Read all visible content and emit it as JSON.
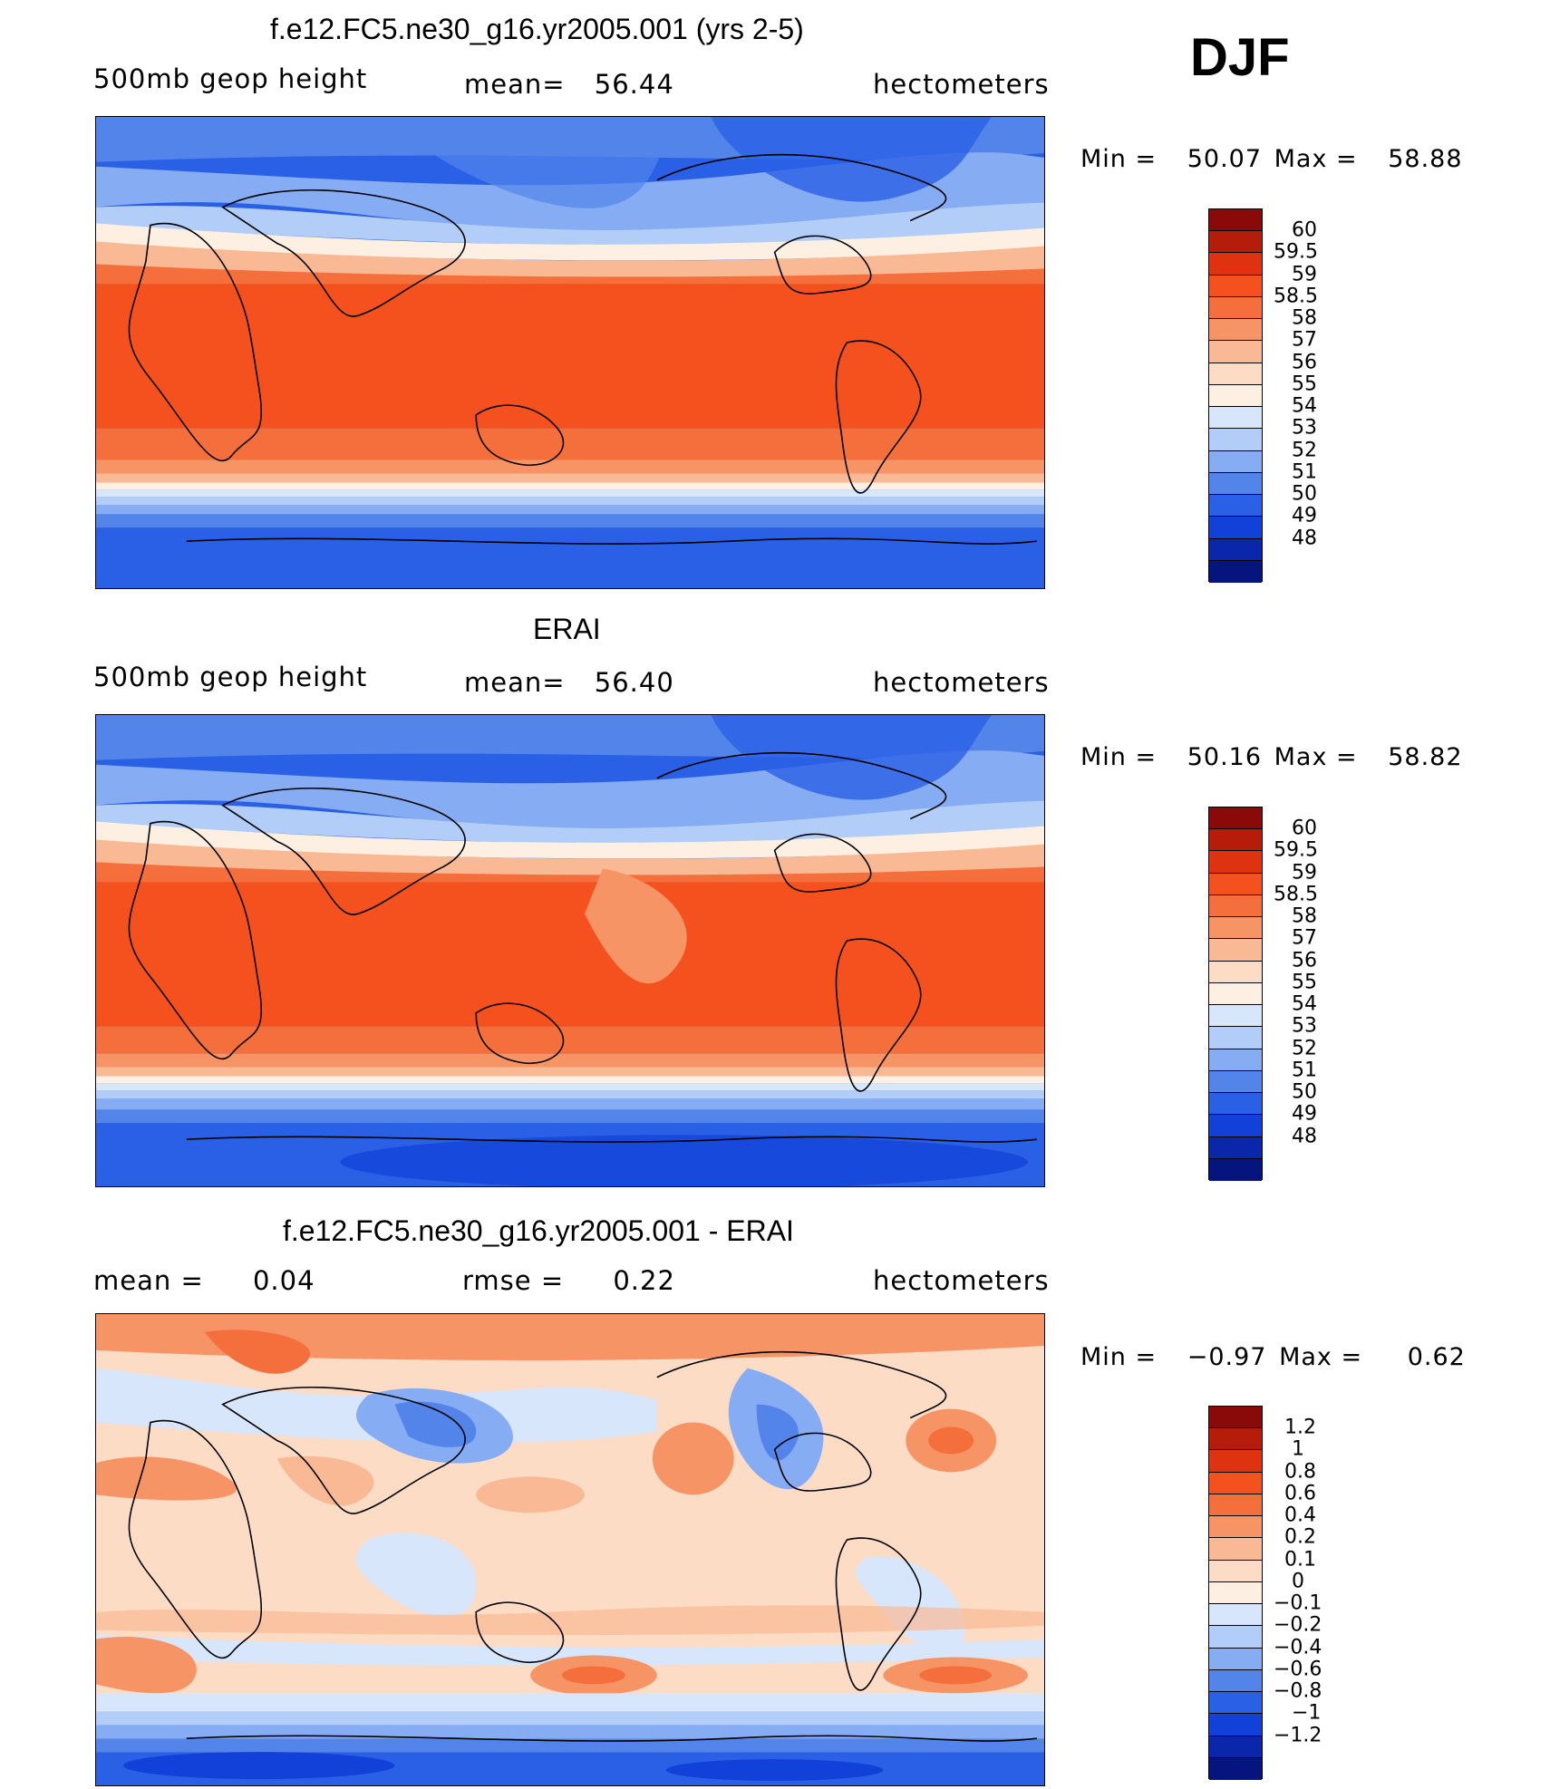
{
  "season": "DJF",
  "panels": [
    {
      "title": "f.e12.FC5.ne30_g16.yr2005.001 (yrs 2-5)",
      "left_label": "500mb geop height",
      "mean_label": "mean=",
      "mean_value": "56.44",
      "units": "hectometers",
      "min_label": "Min =",
      "min_value": "50.07",
      "max_label": "Max =",
      "max_value": "58.88",
      "type": "field"
    },
    {
      "title": "ERAI",
      "left_label": "500mb geop height",
      "mean_label": "mean=",
      "mean_value": "56.40",
      "units": "hectometers",
      "min_label": "Min =",
      "min_value": "50.16",
      "max_label": "Max =",
      "max_value": "58.82",
      "type": "field"
    },
    {
      "title": "f.e12.FC5.ne30_g16.yr2005.001 - ERAI",
      "left_label": "mean =",
      "left_value": "0.04",
      "mean_label": "rmse =",
      "mean_value": "0.22",
      "units": "hectometers",
      "min_label": "Min =",
      "min_value": "−0.97",
      "max_label": "Max =",
      "max_value": "0.62",
      "type": "difference"
    }
  ],
  "field_colorbar": {
    "levels": [
      "60",
      "59.5",
      "59",
      "58.5",
      "58",
      "57",
      "56",
      "55",
      "54",
      "53",
      "52",
      "51",
      "50",
      "49",
      "48"
    ],
    "colors": [
      "#8a0a0a",
      "#b51d0a",
      "#de3210",
      "#f4511e",
      "#f56f3d",
      "#f79466",
      "#f9b995",
      "#fcdcc4",
      "#fdf0e3",
      "#d7e6fb",
      "#b1cdf8",
      "#86acf3",
      "#5284ea",
      "#2a60e6",
      "#1141d8",
      "#0a26aa",
      "#061480"
    ]
  },
  "diff_colorbar": {
    "levels": [
      "1.2",
      "1",
      "0.8",
      "0.6",
      "0.4",
      "0.2",
      "0.1",
      "0",
      "−0.1",
      "−0.2",
      "−0.4",
      "−0.6",
      "−0.8",
      "−1",
      "−1.2"
    ],
    "colors": [
      "#8a0a0a",
      "#b51d0a",
      "#de3210",
      "#f4511e",
      "#f56f3d",
      "#f79466",
      "#f9b995",
      "#fcdcc4",
      "#fdf0e3",
      "#d7e6fb",
      "#b1cdf8",
      "#86acf3",
      "#5284ea",
      "#2a60e6",
      "#1141d8",
      "#0a26aa",
      "#061480"
    ]
  }
}
